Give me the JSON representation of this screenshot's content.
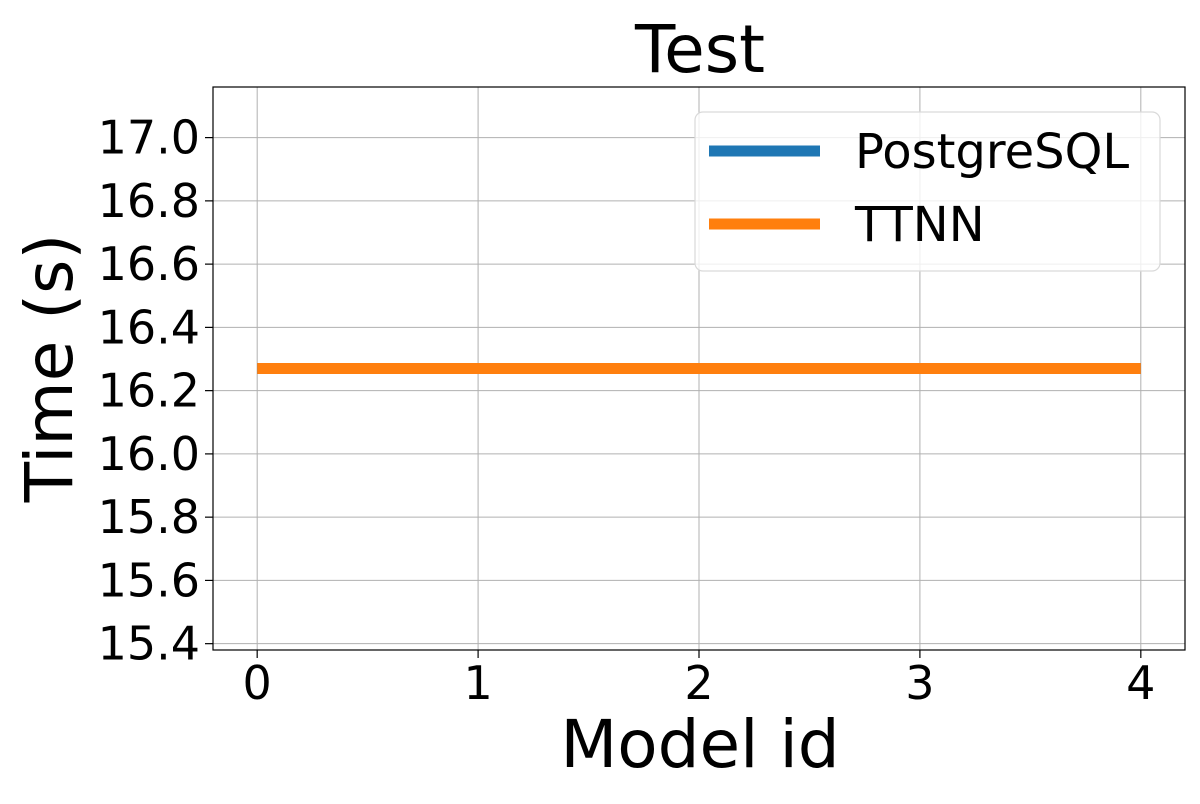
{
  "chart_data": {
    "type": "line",
    "title": "Test",
    "xlabel": "Model id",
    "ylabel": "Time (s)",
    "x": [
      0,
      1,
      2,
      3,
      4
    ],
    "x_ticks": [
      "0",
      "1",
      "2",
      "3",
      "4"
    ],
    "y_ticks": [
      "15.4",
      "15.6",
      "15.8",
      "16.0",
      "16.2",
      "16.4",
      "16.6",
      "16.8",
      "17.0"
    ],
    "xlim": [
      -0.2,
      4.2
    ],
    "ylim": [
      15.38,
      17.16
    ],
    "grid": true,
    "legend_position": "top-right",
    "series": [
      {
        "name": "PostgreSQL",
        "color": "#1f77b4",
        "values": [
          16.27,
          16.27,
          16.27,
          16.27,
          16.27
        ]
      },
      {
        "name": "TTNN",
        "color": "#ff7f0e",
        "values": [
          16.27,
          16.27,
          16.27,
          16.27,
          16.27
        ]
      }
    ]
  }
}
